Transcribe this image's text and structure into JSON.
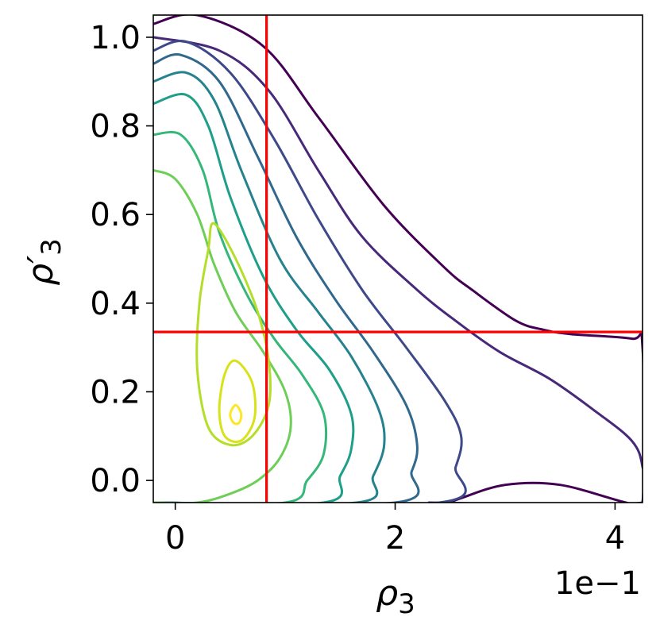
{
  "chart_data": {
    "type": "contour",
    "title": "",
    "xlabel": "ρ",
    "xlabel_sub": "3",
    "ylabel": "ρ′",
    "ylabel_sub": "3",
    "x_offset_text": "1e−1",
    "xlim": [
      -0.2,
      4.25
    ],
    "ylim": [
      -0.05,
      1.05
    ],
    "x_ticks": [
      0,
      2,
      4
    ],
    "x_tick_labels": [
      "0",
      "2",
      "4"
    ],
    "y_ticks": [
      0.0,
      0.2,
      0.4,
      0.6,
      0.8,
      1.0
    ],
    "y_tick_labels": [
      "0.0",
      "0.2",
      "0.4",
      "0.6",
      "0.8",
      "1.0"
    ],
    "grid": false,
    "reference_lines": {
      "vertical_x": 0.83,
      "horizontal_y": 0.335,
      "color": "#ff0000"
    },
    "density_peak": {
      "x": 0.55,
      "y": 0.15
    },
    "contour_levels": [
      {
        "level": 1,
        "color": "#440154",
        "points": [
          [
            -0.2,
            1.03
          ],
          [
            0.2,
            1.05
          ],
          [
            0.8,
            0.98
          ],
          [
            1.3,
            0.82
          ],
          [
            1.9,
            0.62
          ],
          [
            2.45,
            0.48
          ],
          [
            2.7,
            0.43
          ],
          [
            3.1,
            0.36
          ],
          [
            3.35,
            0.34
          ],
          [
            3.6,
            0.33
          ],
          [
            4.15,
            0.32
          ],
          [
            4.25,
            0.3
          ],
          [
            4.25,
            -0.05
          ],
          [
            4.1,
            -0.05
          ],
          [
            3.5,
            -0.01
          ],
          [
            3.0,
            -0.01
          ],
          [
            2.6,
            -0.04
          ],
          [
            2.5,
            -0.05
          ]
        ]
      },
      {
        "level": 2,
        "color": "#482878",
        "points": [
          [
            -0.2,
            1.0
          ],
          [
            0.4,
            0.97
          ],
          [
            0.85,
            0.88
          ],
          [
            1.3,
            0.7
          ],
          [
            1.7,
            0.55
          ],
          [
            2.2,
            0.43
          ],
          [
            2.55,
            0.36
          ],
          [
            2.95,
            0.29
          ],
          [
            3.4,
            0.23
          ],
          [
            3.8,
            0.16
          ],
          [
            4.15,
            0.09
          ],
          [
            4.25,
            0.03
          ],
          [
            4.25,
            -0.05
          ],
          [
            2.3,
            -0.05
          ]
        ]
      },
      {
        "level": 3,
        "color": "#3e4989",
        "points": [
          [
            -0.2,
            0.97
          ],
          [
            0.1,
            0.99
          ],
          [
            0.5,
            0.92
          ],
          [
            0.9,
            0.77
          ],
          [
            1.3,
            0.59
          ],
          [
            1.7,
            0.43
          ],
          [
            2.1,
            0.3
          ],
          [
            2.45,
            0.18
          ],
          [
            2.6,
            0.1
          ],
          [
            2.55,
            0.03
          ],
          [
            2.4,
            -0.05
          ],
          [
            -0.2,
            -0.05
          ]
        ]
      },
      {
        "level": 4,
        "color": "#31688e",
        "points": [
          [
            -0.2,
            0.94
          ],
          [
            0.05,
            0.96
          ],
          [
            0.4,
            0.9
          ],
          [
            0.75,
            0.73
          ],
          [
            1.1,
            0.55
          ],
          [
            1.45,
            0.41
          ],
          [
            1.8,
            0.29
          ],
          [
            2.1,
            0.17
          ],
          [
            2.2,
            0.08
          ],
          [
            2.15,
            0.02
          ],
          [
            2.0,
            -0.05
          ],
          [
            -0.2,
            -0.05
          ]
        ]
      },
      {
        "level": 5,
        "color": "#26828e",
        "points": [
          [
            -0.2,
            0.9
          ],
          [
            0.1,
            0.92
          ],
          [
            0.35,
            0.86
          ],
          [
            0.6,
            0.7
          ],
          [
            0.95,
            0.5
          ],
          [
            1.3,
            0.38
          ],
          [
            1.6,
            0.28
          ],
          [
            1.85,
            0.16
          ],
          [
            1.9,
            0.08
          ],
          [
            1.8,
            0.01
          ],
          [
            1.65,
            -0.05
          ],
          [
            -0.2,
            -0.05
          ]
        ]
      },
      {
        "level": 6,
        "color": "#1f9e89",
        "points": [
          [
            -0.2,
            0.85
          ],
          [
            0.1,
            0.87
          ],
          [
            0.3,
            0.8
          ],
          [
            0.5,
            0.64
          ],
          [
            0.8,
            0.46
          ],
          [
            1.1,
            0.34
          ],
          [
            1.4,
            0.25
          ],
          [
            1.6,
            0.15
          ],
          [
            1.6,
            0.07
          ],
          [
            1.5,
            0.01
          ],
          [
            1.35,
            -0.05
          ],
          [
            -0.2,
            -0.05
          ]
        ]
      },
      {
        "level": 7,
        "color": "#35b779",
        "points": [
          [
            -0.2,
            0.78
          ],
          [
            0.05,
            0.78
          ],
          [
            0.25,
            0.7
          ],
          [
            0.4,
            0.56
          ],
          [
            0.65,
            0.42
          ],
          [
            0.9,
            0.32
          ],
          [
            1.15,
            0.24
          ],
          [
            1.35,
            0.15
          ],
          [
            1.35,
            0.06
          ],
          [
            1.2,
            0.0
          ],
          [
            1.0,
            -0.05
          ],
          [
            -0.2,
            -0.05
          ]
        ]
      },
      {
        "level": 8,
        "color": "#6ece58",
        "points": [
          [
            -0.2,
            0.7
          ],
          [
            0.0,
            0.68
          ],
          [
            0.2,
            0.6
          ],
          [
            0.35,
            0.49
          ],
          [
            0.55,
            0.38
          ],
          [
            0.8,
            0.29
          ],
          [
            1.0,
            0.2
          ],
          [
            1.05,
            0.12
          ],
          [
            0.95,
            0.05
          ],
          [
            0.75,
            0.0
          ],
          [
            0.5,
            -0.03
          ],
          [
            0.2,
            -0.05
          ],
          [
            -0.2,
            -0.05
          ]
        ]
      },
      {
        "level": 9,
        "color": "#b5de2b",
        "points": [
          [
            0.35,
            0.58
          ],
          [
            0.55,
            0.5
          ],
          [
            0.75,
            0.38
          ],
          [
            0.85,
            0.27
          ],
          [
            0.85,
            0.17
          ],
          [
            0.7,
            0.1
          ],
          [
            0.5,
            0.08
          ],
          [
            0.3,
            0.12
          ],
          [
            0.2,
            0.25
          ],
          [
            0.22,
            0.4
          ],
          [
            0.3,
            0.52
          ],
          [
            0.35,
            0.58
          ]
        ]
      },
      {
        "level": 10,
        "color": "#d8e219",
        "points": [
          [
            0.55,
            0.27
          ],
          [
            0.7,
            0.22
          ],
          [
            0.72,
            0.14
          ],
          [
            0.6,
            0.09
          ],
          [
            0.45,
            0.1
          ],
          [
            0.4,
            0.16
          ],
          [
            0.45,
            0.24
          ],
          [
            0.55,
            0.27
          ]
        ]
      },
      {
        "level": 11,
        "color": "#fde725",
        "points": [
          [
            0.55,
            0.17
          ],
          [
            0.6,
            0.15
          ],
          [
            0.58,
            0.13
          ],
          [
            0.53,
            0.13
          ],
          [
            0.5,
            0.15
          ],
          [
            0.55,
            0.17
          ]
        ]
      }
    ]
  }
}
